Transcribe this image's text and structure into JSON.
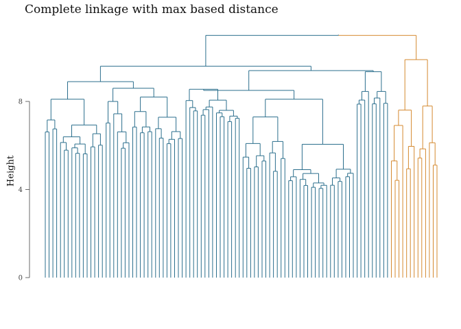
{
  "chart_data": {
    "type": "dendrogram",
    "title": "Complete linkage with max based distance",
    "xlabel": "",
    "ylabel": "Height",
    "ylim": [
      0,
      11.2
    ],
    "y_ticks": [
      {
        "value": 0,
        "label": "0"
      },
      {
        "value": 4,
        "label": "4"
      },
      {
        "value": 8,
        "label": "8"
      }
    ],
    "grid": false,
    "colors": {
      "cluster_1": "#2a6e8c",
      "cluster_2": "#d4882e",
      "axis": "#444444"
    },
    "clusters": [
      {
        "color_key": "cluster_1",
        "leaf_count": 91,
        "merge_height": 10.9
      },
      {
        "color_key": "cluster_2",
        "leaf_count": 13,
        "merge_height": 10.8
      }
    ],
    "root_height": 11.0,
    "top_merges": [
      {
        "height": 9.6,
        "children": [
          "left-group",
          "right-group"
        ]
      },
      {
        "height": 9.45,
        "children": [
          "left-a",
          "left-b"
        ]
      },
      {
        "height": 9.4,
        "children": [
          "middle",
          "blue-right"
        ]
      },
      {
        "height": 8.9,
        "children": [
          "left-a1",
          "left-a2"
        ]
      },
      {
        "height": 8.6,
        "children": [
          "branch-a",
          "branch-b"
        ]
      },
      {
        "height": 8.8,
        "children": [
          "mid-a",
          "mid-b"
        ]
      },
      {
        "height": 8.5,
        "children": [
          "mid-c",
          "mid-d"
        ]
      },
      {
        "height": 8.0,
        "children": [
          "mid-e",
          "mid-f"
        ]
      }
    ]
  }
}
